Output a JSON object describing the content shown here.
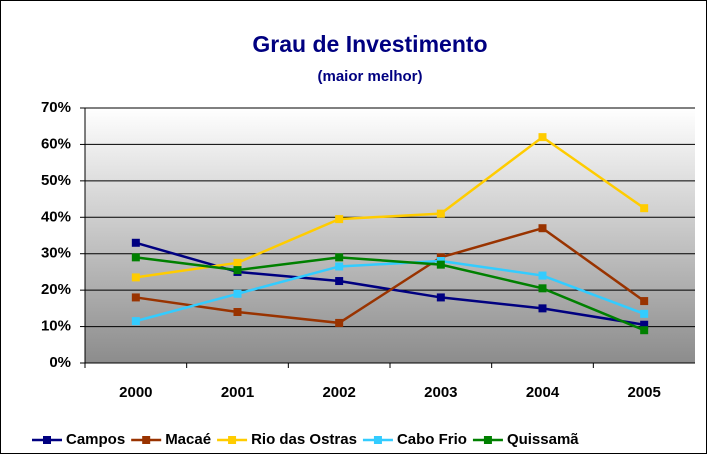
{
  "chart_data": {
    "type": "line",
    "title": "Grau de Investimento",
    "subtitle": "(maior melhor)",
    "categories": [
      "2000",
      "2001",
      "2002",
      "2003",
      "2004",
      "2005"
    ],
    "series": [
      {
        "name": "Campos",
        "color": "#000080",
        "values": [
          33,
          25,
          22.5,
          18,
          15,
          10.5
        ]
      },
      {
        "name": "Macaé",
        "color": "#993300",
        "values": [
          18,
          14,
          11,
          29,
          37,
          17
        ]
      },
      {
        "name": "Rio das Ostras",
        "color": "#FFCC00",
        "values": [
          23.5,
          27.5,
          39.5,
          41,
          62,
          42.5
        ]
      },
      {
        "name": "Cabo Frio",
        "color": "#33CCFF",
        "values": [
          11.5,
          19,
          26.5,
          28,
          24,
          13.5
        ]
      },
      {
        "name": "Quissamã",
        "color": "#008000",
        "values": [
          29,
          25.5,
          29,
          27,
          20.5,
          9
        ]
      }
    ],
    "ylim": [
      0,
      70
    ],
    "yticks": [
      {
        "value": 0,
        "label": "0%"
      },
      {
        "value": 10,
        "label": "10%"
      },
      {
        "value": 20,
        "label": "20%"
      },
      {
        "value": 30,
        "label": "30%"
      },
      {
        "value": 40,
        "label": "40%"
      },
      {
        "value": 50,
        "label": "50%"
      },
      {
        "value": 60,
        "label": "60%"
      },
      {
        "value": 70,
        "label": "70%"
      }
    ],
    "grid": true,
    "legend": "bottom"
  }
}
